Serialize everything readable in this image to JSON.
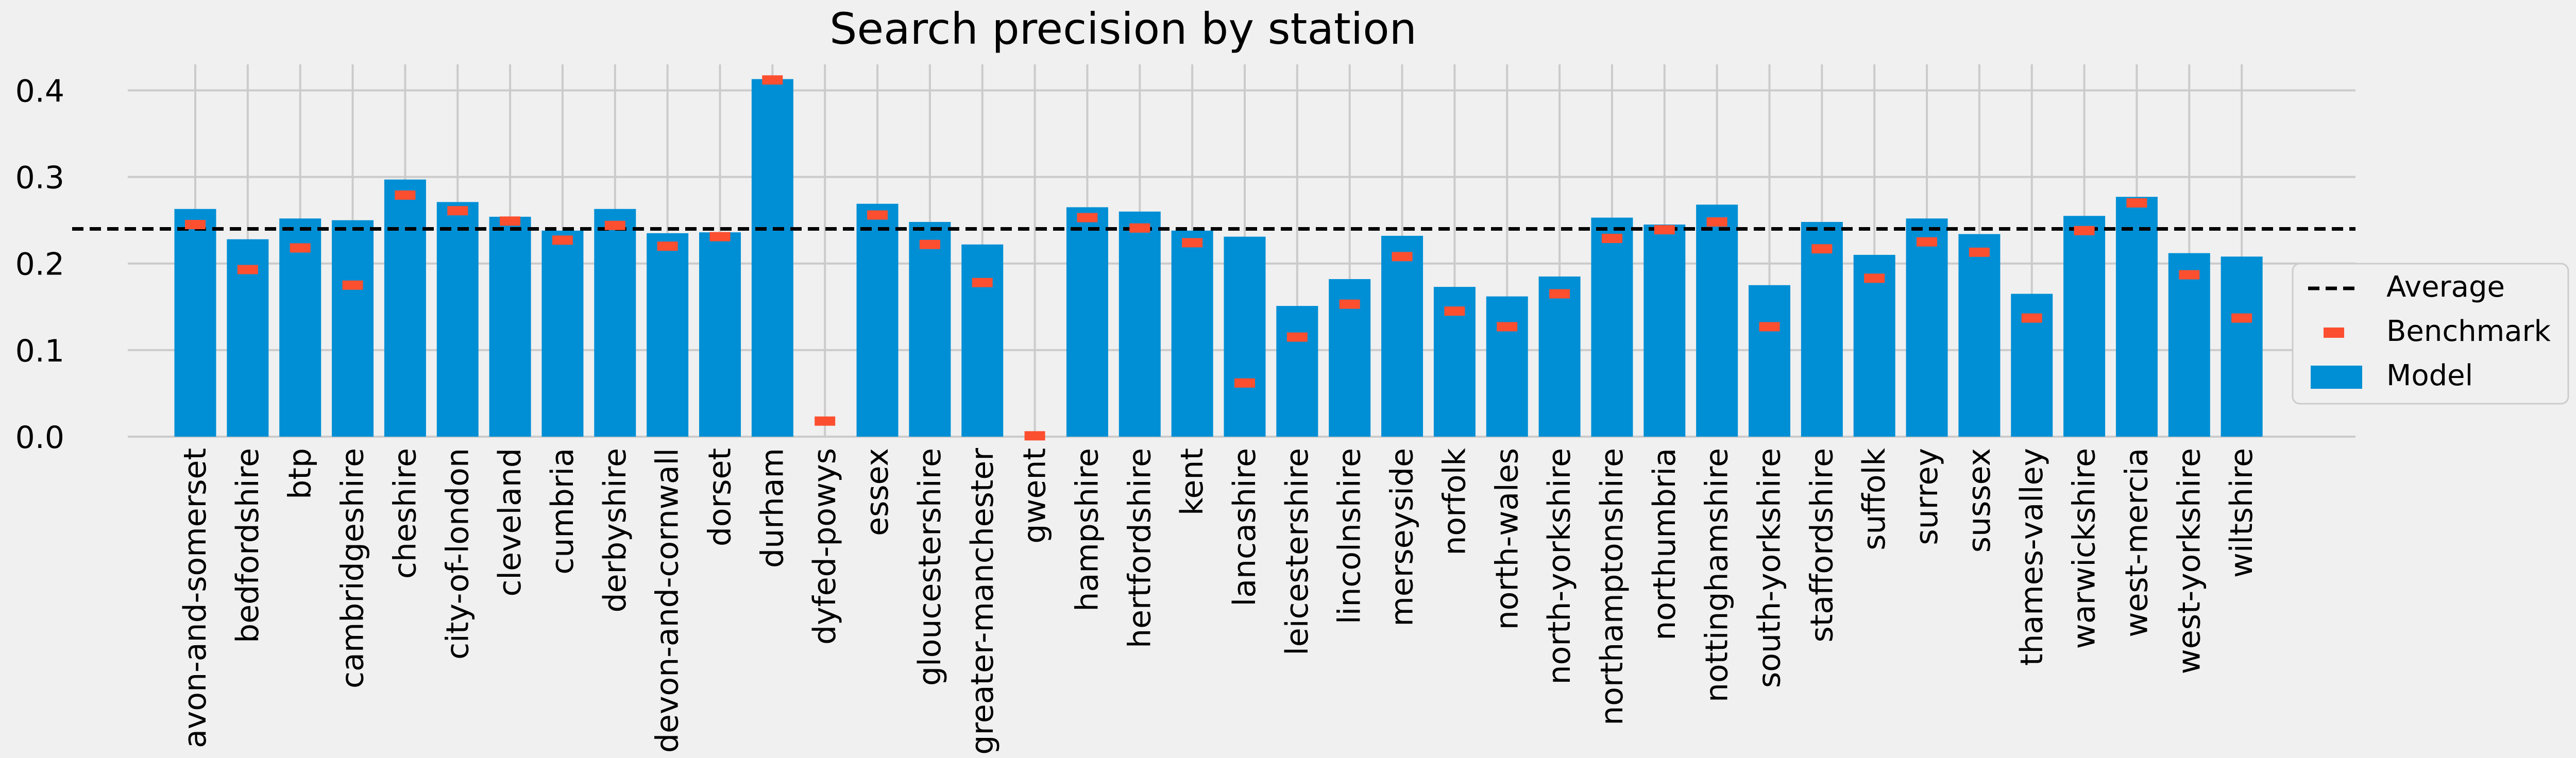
{
  "chart_data": {
    "type": "bar",
    "title": "Search precision by station",
    "xlabel": "",
    "ylabel": "",
    "ylim": [
      0,
      0.43
    ],
    "yticks": [
      "0.0",
      "0.1",
      "0.2",
      "0.3",
      "0.4"
    ],
    "grid": true,
    "legend_position": "right",
    "categories": [
      "avon-and-somerset",
      "bedfordshire",
      "btp",
      "cambridgeshire",
      "cheshire",
      "city-of-london",
      "cleveland",
      "cumbria",
      "derbyshire",
      "devon-and-cornwall",
      "dorset",
      "durham",
      "dyfed-powys",
      "essex",
      "gloucestershire",
      "greater-manchester",
      "gwent",
      "hampshire",
      "hertfordshire",
      "kent",
      "lancashire",
      "leicestershire",
      "lincolnshire",
      "merseyside",
      "norfolk",
      "north-wales",
      "north-yorkshire",
      "northamptonshire",
      "northumbria",
      "nottinghamshire",
      "south-yorkshire",
      "staffordshire",
      "suffolk",
      "surrey",
      "sussex",
      "thames-valley",
      "warwickshire",
      "west-mercia",
      "west-yorkshire",
      "wiltshire"
    ],
    "series": [
      {
        "name": "Model",
        "kind": "bar",
        "color": "#008fd5",
        "values": [
          0.263,
          0.228,
          0.252,
          0.25,
          0.297,
          0.271,
          0.254,
          0.238,
          0.263,
          0.235,
          0.236,
          0.413,
          null,
          0.269,
          0.248,
          0.222,
          null,
          0.265,
          0.26,
          0.238,
          0.231,
          0.151,
          0.182,
          0.232,
          0.173,
          0.162,
          0.185,
          0.253,
          0.245,
          0.268,
          0.175,
          0.248,
          0.21,
          0.252,
          0.234,
          0.165,
          0.255,
          0.277,
          0.212,
          0.208
        ]
      },
      {
        "name": "Benchmark",
        "kind": "marker",
        "color": "#fc4f30",
        "values": [
          0.245,
          0.193,
          0.218,
          0.175,
          0.279,
          0.261,
          0.249,
          0.227,
          0.244,
          0.22,
          0.231,
          0.412,
          0.018,
          0.256,
          0.222,
          0.178,
          0.001,
          0.253,
          0.241,
          0.224,
          0.062,
          0.115,
          0.153,
          0.208,
          0.145,
          0.127,
          0.165,
          0.229,
          0.239,
          0.248,
          0.127,
          0.217,
          0.183,
          0.225,
          0.213,
          0.137,
          0.238,
          0.27,
          0.187,
          0.137
        ]
      },
      {
        "name": "Average",
        "kind": "hline",
        "color": "#000000",
        "style": "dashed",
        "value": 0.24
      }
    ]
  }
}
